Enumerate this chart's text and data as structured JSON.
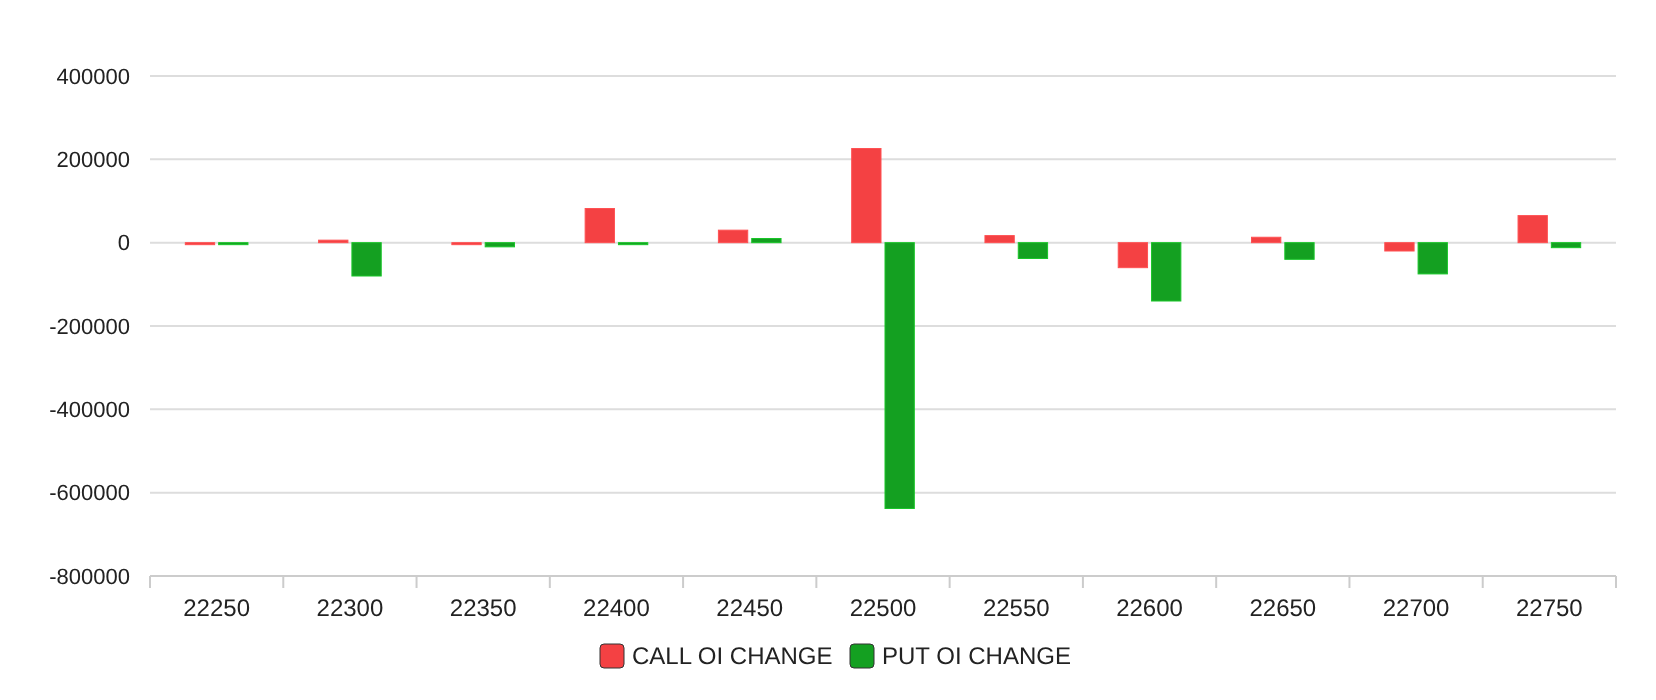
{
  "chart_data": {
    "type": "bar",
    "categories": [
      "22250",
      "22300",
      "22350",
      "22400",
      "22450",
      "22500",
      "22550",
      "22600",
      "22650",
      "22700",
      "22750"
    ],
    "series": [
      {
        "name": "CALL OI CHANGE",
        "color": "#f44143",
        "values": [
          -3000,
          6000,
          -2000,
          82000,
          30000,
          226000,
          17000,
          -60000,
          13000,
          -20000,
          65000
        ]
      },
      {
        "name": "PUT OI CHANGE",
        "color": "#14a021",
        "values": [
          -3000,
          -80000,
          -10000,
          -3000,
          10000,
          -638000,
          -38000,
          -140000,
          -40000,
          -75000,
          -12000
        ]
      }
    ],
    "ylim": [
      -800000,
      400000
    ],
    "yticks": [
      -800000,
      -600000,
      -400000,
      -200000,
      0,
      200000,
      400000
    ],
    "grid": "y",
    "legend": "bottom"
  }
}
